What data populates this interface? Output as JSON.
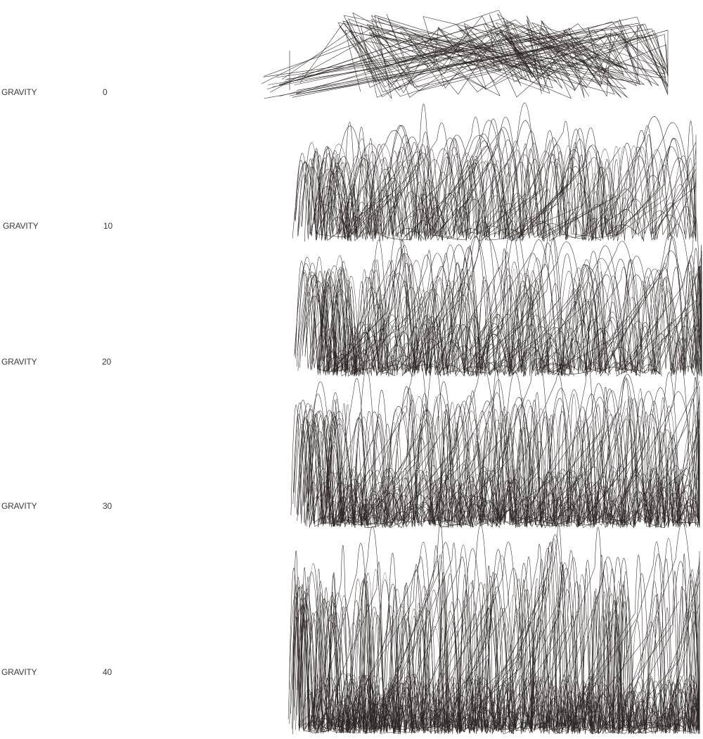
{
  "panels": [
    {
      "label": "GRAVITY",
      "value": "0"
    },
    {
      "label": "GRAVITY",
      "value": "10"
    },
    {
      "label": "GRAVITY",
      "value": "20"
    },
    {
      "label": "GRAVITY",
      "value": "30"
    },
    {
      "label": "GRAVITY",
      "value": "40"
    }
  ],
  "stroke_color": "#2b2422",
  "label_color": "#3a3a3a"
}
